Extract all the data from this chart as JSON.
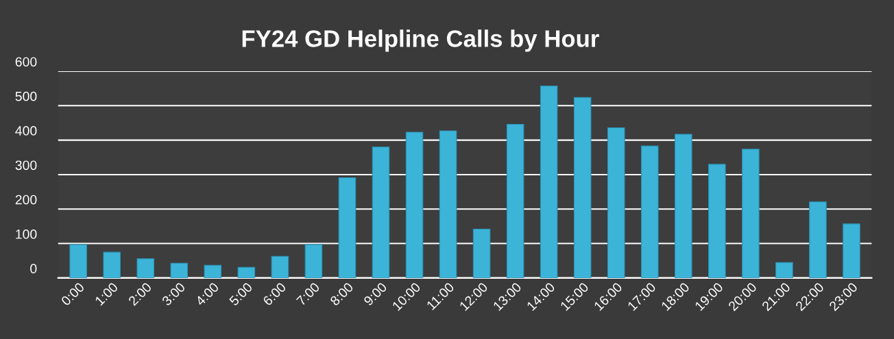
{
  "chart_data": {
    "type": "bar",
    "title": "FY24 GD Helpline Calls by Hour",
    "categories": [
      "0:00",
      "1:00",
      "2:00",
      "3:00",
      "4:00",
      "5:00",
      "6:00",
      "7:00",
      "8:00",
      "9:00",
      "10:00",
      "11:00",
      "12:00",
      "13:00",
      "14:00",
      "15:00",
      "16:00",
      "17:00",
      "18:00",
      "19:00",
      "20:00",
      "21:00",
      "22:00",
      "23:00"
    ],
    "values": [
      97,
      75,
      56,
      43,
      37,
      31,
      63,
      97,
      291,
      380,
      423,
      427,
      142,
      446,
      557,
      524,
      436,
      383,
      417,
      330,
      374,
      45,
      221,
      157
    ],
    "color": "#3bb4d8",
    "ylim": [
      0,
      600
    ],
    "yticks": [
      0,
      100,
      200,
      300,
      400,
      500,
      600
    ],
    "grid": "y"
  }
}
